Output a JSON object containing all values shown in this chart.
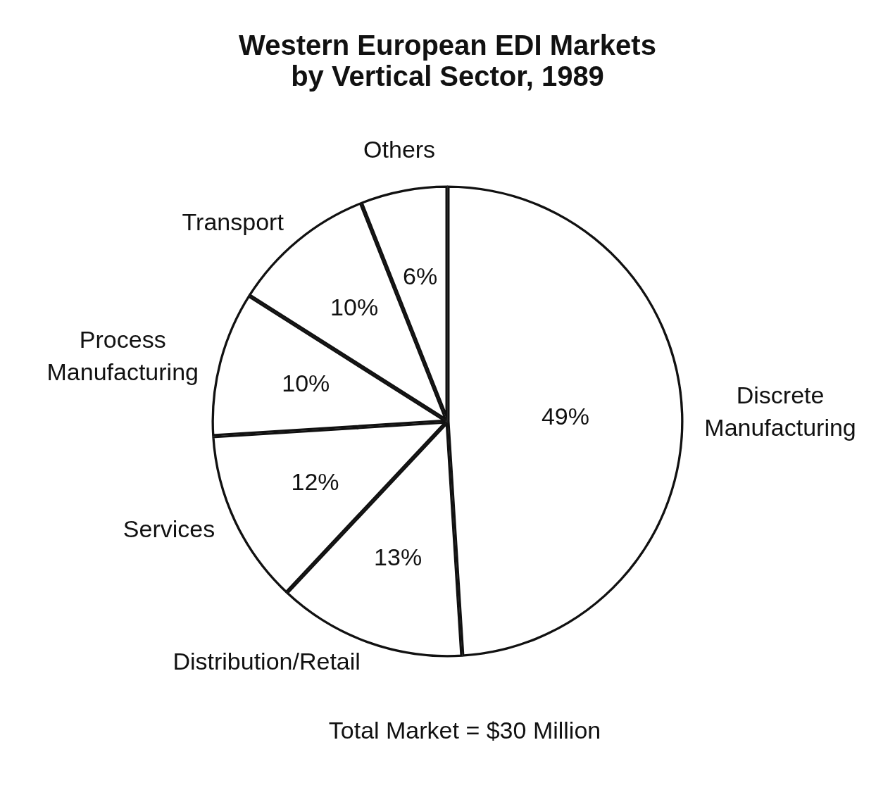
{
  "chart_data": {
    "type": "pie",
    "title": "Western European EDI Markets\nby Vertical Sector, 1989",
    "categories": [
      "Discrete Manufacturing",
      "Distribution/Retail",
      "Services",
      "Process Manufacturing",
      "Transport",
      "Others"
    ],
    "values": [
      49,
      13,
      12,
      10,
      10,
      6
    ],
    "value_labels": [
      "49%",
      "13%",
      "12%",
      "10%",
      "10%",
      "6%"
    ],
    "colors": [
      "#ffffff",
      "#ffffff",
      "#ffffff",
      "#ffffff",
      "#ffffff",
      "#ffffff"
    ],
    "legend": false,
    "annotations": [
      "Total Market = $30 Million"
    ]
  }
}
